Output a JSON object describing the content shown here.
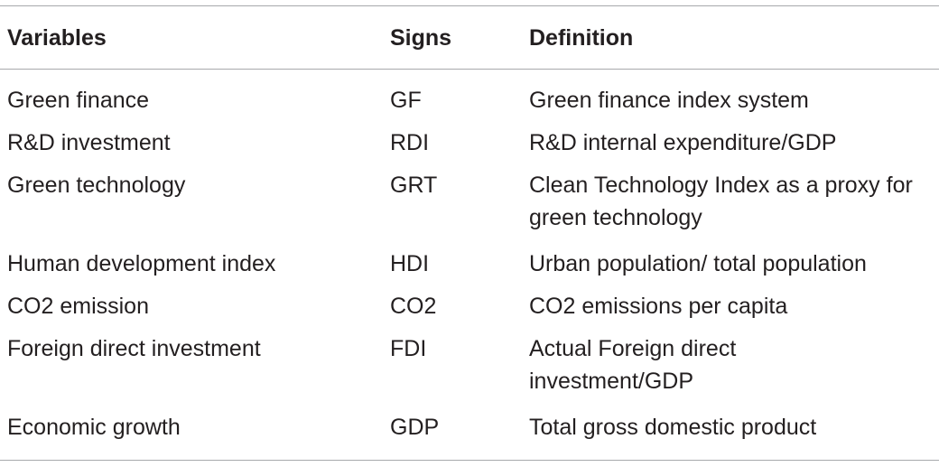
{
  "table": {
    "headers": {
      "variables": "Variables",
      "signs": "Signs",
      "definition": "Definition"
    },
    "rows": [
      {
        "variable": "Green finance",
        "sign": "GF",
        "definition": "Green finance index system"
      },
      {
        "variable": "R&D investment",
        "sign": "RDI",
        "definition": "R&D internal expenditure/GDP"
      },
      {
        "variable": "Green technology",
        "sign": "GRT",
        "definition": "Clean Technology Index as a proxy for green technology"
      },
      {
        "variable": "Human development index",
        "sign": "HDI",
        "definition": "Urban population/ total population"
      },
      {
        "variable": "CO2 emission",
        "sign": "CO2",
        "definition": "CO2 emissions per capita"
      },
      {
        "variable": "Foreign direct investment",
        "sign": "FDI",
        "definition": "Actual Foreign direct investment/GDP"
      },
      {
        "variable": "Economic growth",
        "sign": "GDP",
        "definition": "Total gross domestic product"
      }
    ]
  }
}
